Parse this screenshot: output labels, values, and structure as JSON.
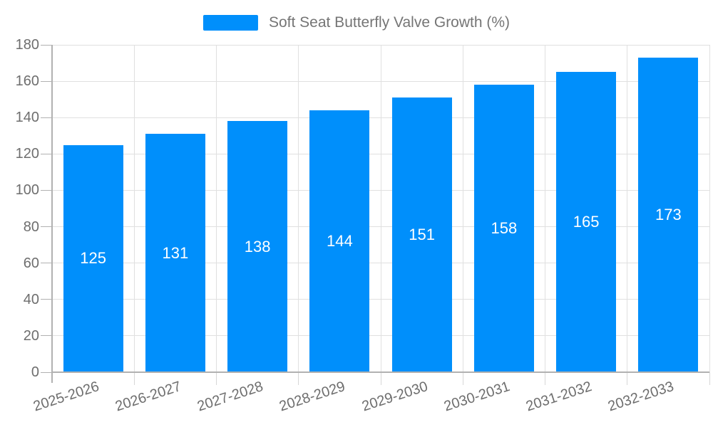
{
  "legend": {
    "label": "Soft Seat Butterfly Valve Growth (%)"
  },
  "colors": {
    "bar": "#008FFB",
    "grid_line": "#e0e0e0",
    "axis_line": "#b1b1b1",
    "x_tick": "#d7d7d7",
    "axis_label_text": "#6e6e6e",
    "legend_text": "#757575",
    "value_label_text": "#ffffff",
    "background": "#ffffff"
  },
  "chart_data": {
    "type": "bar",
    "title": "",
    "categories": [
      "2025-2026",
      "2026-2027",
      "2027-2028",
      "2028-2029",
      "2029-2030",
      "2030-2031",
      "2031-2032",
      "2032-2033"
    ],
    "series": [
      {
        "name": "Soft Seat Butterfly Valve Growth (%)",
        "values": [
          125,
          131,
          138,
          144,
          151,
          158,
          165,
          173
        ]
      }
    ],
    "xlabel": "",
    "ylabel": "",
    "ylim": [
      0,
      180
    ],
    "y_ticks": [
      0,
      20,
      40,
      60,
      80,
      100,
      120,
      140,
      160,
      180
    ],
    "grid": "both",
    "legend_position": "top",
    "value_labels": "inside-center",
    "x_label_rotation_deg": -18
  }
}
